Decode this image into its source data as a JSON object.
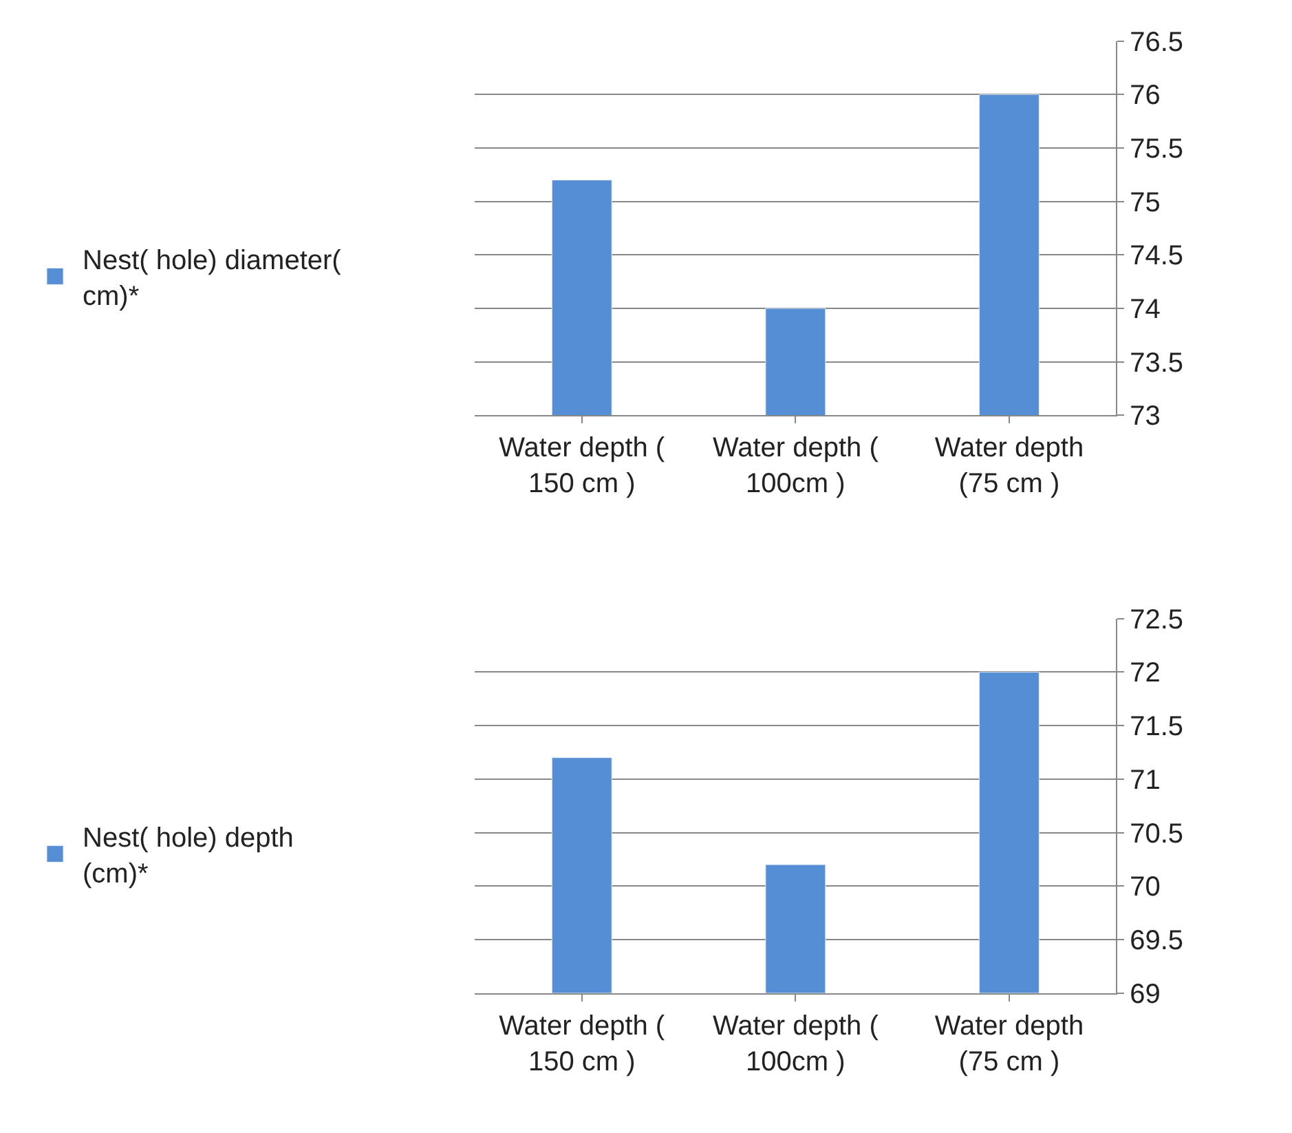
{
  "chart_data": [
    {
      "type": "bar",
      "categories": [
        "Water depth ( 150 cm )",
        "Water depth ( 100cm )",
        "Water depth (75 cm )"
      ],
      "series": [
        {
          "name": "Nest( hole) diameter( cm)*",
          "color": "#558ed5",
          "values": [
            75.2,
            74.0,
            76.0
          ]
        }
      ],
      "ylim": [
        73,
        76.5
      ],
      "yticks": [
        73,
        73.5,
        74,
        74.5,
        75,
        75.5,
        76,
        76.5
      ],
      "grid": "y",
      "legend": "left"
    },
    {
      "type": "bar",
      "categories": [
        "Water depth ( 150 cm )",
        "Water depth ( 100cm )",
        "Water depth (75 cm )"
      ],
      "series": [
        {
          "name": "Nest( hole) depth (cm)*",
          "color": "#558ed5",
          "values": [
            71.2,
            70.2,
            72.0
          ]
        }
      ],
      "ylim": [
        69,
        72.5
      ],
      "yticks": [
        69,
        69.5,
        70,
        70.5,
        71,
        71.5,
        72,
        72.5
      ],
      "grid": "y",
      "legend": "left"
    }
  ]
}
